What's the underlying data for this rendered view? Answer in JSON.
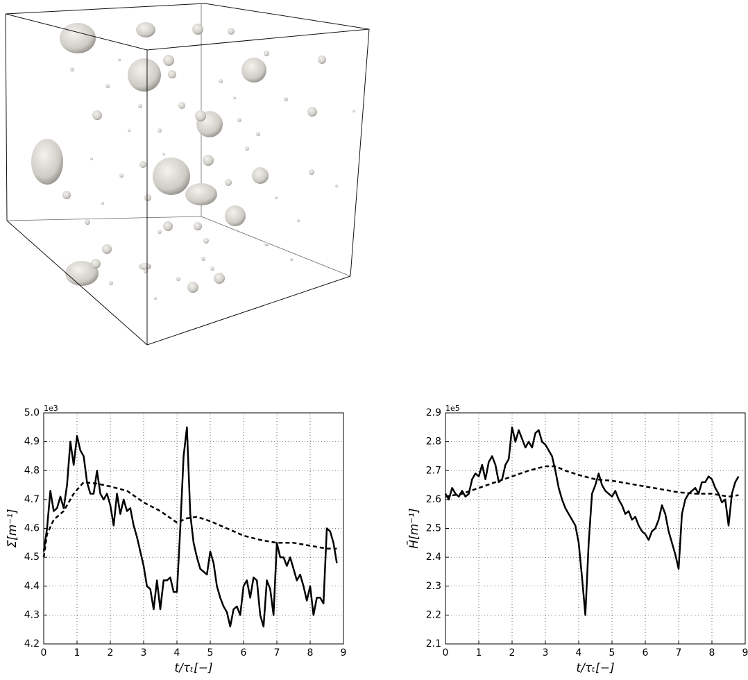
{
  "chart_data": [
    {
      "type": "line",
      "y_offset_label": "1e3",
      "xlabel": "t/τₜ[−]",
      "ylabel": "Σ̄[m⁻¹]",
      "xlim": [
        0,
        9
      ],
      "xticks": [
        0,
        1,
        2,
        3,
        4,
        5,
        6,
        7,
        8,
        9
      ],
      "ylim": [
        4.2,
        5
      ],
      "yticks": [
        4.2,
        4.3,
        4.4,
        4.5,
        4.6,
        4.7,
        4.8,
        4.9,
        {
          "value": 5,
          "label": "5.0"
        }
      ],
      "grid": true,
      "series": [
        {
          "color": "#000000",
          "dashed": false,
          "x": [
            0,
            0.1,
            0.2,
            0.3,
            0.4,
            0.5,
            0.6,
            0.7,
            0.8,
            0.9,
            1,
            1.1,
            1.2,
            1.3,
            1.4,
            1.5,
            1.6,
            1.7,
            1.8,
            1.9,
            2,
            2.1,
            2.2,
            2.3,
            2.4,
            2.5,
            2.6,
            2.7,
            2.8,
            2.9,
            3,
            3.1,
            3.2,
            3.3,
            3.4,
            3.5,
            3.6,
            3.7,
            3.8,
            3.9,
            4,
            4.1,
            4.2,
            4.3,
            4.4,
            4.5,
            4.6,
            4.7,
            4.8,
            4.9,
            5,
            5.1,
            5.2,
            5.3,
            5.4,
            5.5,
            5.6,
            5.7,
            5.8,
            5.9,
            6,
            6.1,
            6.2,
            6.3,
            6.4,
            6.5,
            6.6,
            6.7,
            6.8,
            6.9,
            7,
            7.1,
            7.2,
            7.3,
            7.4,
            7.5,
            7.6,
            7.7,
            7.8,
            7.9,
            8,
            8.1,
            8.2,
            8.3,
            8.4,
            8.5,
            8.6,
            8.7,
            8.8
          ],
          "values": [
            4.52,
            4.6,
            4.73,
            4.66,
            4.67,
            4.71,
            4.67,
            4.75,
            4.9,
            4.82,
            4.92,
            4.87,
            4.85,
            4.76,
            4.72,
            4.72,
            4.8,
            4.72,
            4.7,
            4.72,
            4.68,
            4.61,
            4.72,
            4.65,
            4.7,
            4.66,
            4.67,
            4.61,
            4.57,
            4.52,
            4.47,
            4.4,
            4.39,
            4.32,
            4.42,
            4.32,
            4.42,
            4.42,
            4.43,
            4.38,
            4.38,
            4.6,
            4.85,
            4.95,
            4.65,
            4.55,
            4.5,
            4.46,
            4.45,
            4.44,
            4.52,
            4.48,
            4.4,
            4.36,
            4.33,
            4.31,
            4.26,
            4.32,
            4.33,
            4.3,
            4.4,
            4.42,
            4.36,
            4.43,
            4.42,
            4.3,
            4.26,
            4.42,
            4.39,
            4.3,
            4.55,
            4.5,
            4.5,
            4.47,
            4.5,
            4.46,
            4.42,
            4.44,
            4.4,
            4.35,
            4.4,
            4.3,
            4.36,
            4.36,
            4.34,
            4.6,
            4.59,
            4.55,
            4.48
          ]
        },
        {
          "color": "#000000",
          "dashed": true,
          "x": [
            0,
            0.1,
            0.3,
            0.6,
            0.9,
            1.2,
            1.6,
            2,
            2.5,
            3,
            3.5,
            4,
            4.3,
            4.6,
            5,
            5.5,
            6,
            6.5,
            7,
            7.5,
            8,
            8.5,
            8.8
          ],
          "values": [
            4.5,
            4.58,
            4.63,
            4.66,
            4.72,
            4.76,
            4.755,
            4.745,
            4.73,
            4.69,
            4.66,
            4.62,
            4.635,
            4.64,
            4.625,
            4.6,
            4.575,
            4.56,
            4.55,
            4.55,
            4.54,
            4.53,
            4.53
          ]
        }
      ]
    },
    {
      "type": "line",
      "y_offset_label": "1e5",
      "xlabel": "t/τₜ[−]",
      "ylabel": "H̄[m⁻¹]",
      "xlim": [
        0,
        9
      ],
      "xticks": [
        0,
        1,
        2,
        3,
        4,
        5,
        6,
        7,
        8,
        9
      ],
      "ylim": [
        2.1,
        2.9
      ],
      "yticks": [
        2.1,
        2.2,
        2.3,
        2.4,
        2.5,
        2.6,
        2.7,
        2.8,
        2.9
      ],
      "grid": true,
      "series": [
        {
          "color": "#000000",
          "dashed": false,
          "x": [
            0,
            0.1,
            0.2,
            0.3,
            0.4,
            0.5,
            0.6,
            0.7,
            0.8,
            0.9,
            1,
            1.1,
            1.2,
            1.3,
            1.4,
            1.5,
            1.6,
            1.7,
            1.8,
            1.9,
            2,
            2.1,
            2.2,
            2.3,
            2.4,
            2.5,
            2.6,
            2.7,
            2.8,
            2.9,
            3,
            3.1,
            3.2,
            3.3,
            3.4,
            3.5,
            3.6,
            3.7,
            3.8,
            3.9,
            4,
            4.1,
            4.2,
            4.3,
            4.4,
            4.5,
            4.6,
            4.7,
            4.8,
            4.9,
            5,
            5.1,
            5.2,
            5.3,
            5.4,
            5.5,
            5.6,
            5.7,
            5.8,
            5.9,
            6,
            6.1,
            6.2,
            6.3,
            6.4,
            6.5,
            6.6,
            6.7,
            6.8,
            6.9,
            7,
            7.1,
            7.2,
            7.3,
            7.4,
            7.5,
            7.6,
            7.7,
            7.8,
            7.9,
            8,
            8.1,
            8.2,
            8.3,
            8.4,
            8.5,
            8.6,
            8.7,
            8.8
          ],
          "values": [
            2.62,
            2.6,
            2.64,
            2.62,
            2.61,
            2.63,
            2.61,
            2.62,
            2.67,
            2.69,
            2.68,
            2.72,
            2.67,
            2.73,
            2.75,
            2.72,
            2.66,
            2.67,
            2.72,
            2.74,
            2.85,
            2.8,
            2.84,
            2.81,
            2.78,
            2.8,
            2.78,
            2.83,
            2.84,
            2.8,
            2.79,
            2.77,
            2.75,
            2.7,
            2.64,
            2.6,
            2.57,
            2.55,
            2.53,
            2.51,
            2.45,
            2.33,
            2.2,
            2.45,
            2.62,
            2.65,
            2.69,
            2.65,
            2.63,
            2.62,
            2.61,
            2.63,
            2.6,
            2.58,
            2.55,
            2.56,
            2.53,
            2.54,
            2.51,
            2.49,
            2.48,
            2.46,
            2.49,
            2.5,
            2.53,
            2.58,
            2.55,
            2.49,
            2.45,
            2.41,
            2.36,
            2.55,
            2.6,
            2.62,
            2.63,
            2.64,
            2.62,
            2.66,
            2.66,
            2.68,
            2.67,
            2.64,
            2.62,
            2.59,
            2.6,
            2.51,
            2.62,
            2.66,
            2.68
          ]
        },
        {
          "color": "#000000",
          "dashed": true,
          "x": [
            0,
            0.5,
            1,
            1.5,
            2,
            2.5,
            3,
            3.3,
            3.6,
            4,
            4.5,
            5,
            5.5,
            6,
            6.5,
            7,
            7.5,
            8,
            8.5,
            8.8
          ],
          "values": [
            2.61,
            2.62,
            2.64,
            2.66,
            2.68,
            2.7,
            2.715,
            2.715,
            2.7,
            2.685,
            2.67,
            2.665,
            2.655,
            2.645,
            2.635,
            2.625,
            2.62,
            2.62,
            2.61,
            2.615
          ]
        }
      ]
    }
  ]
}
